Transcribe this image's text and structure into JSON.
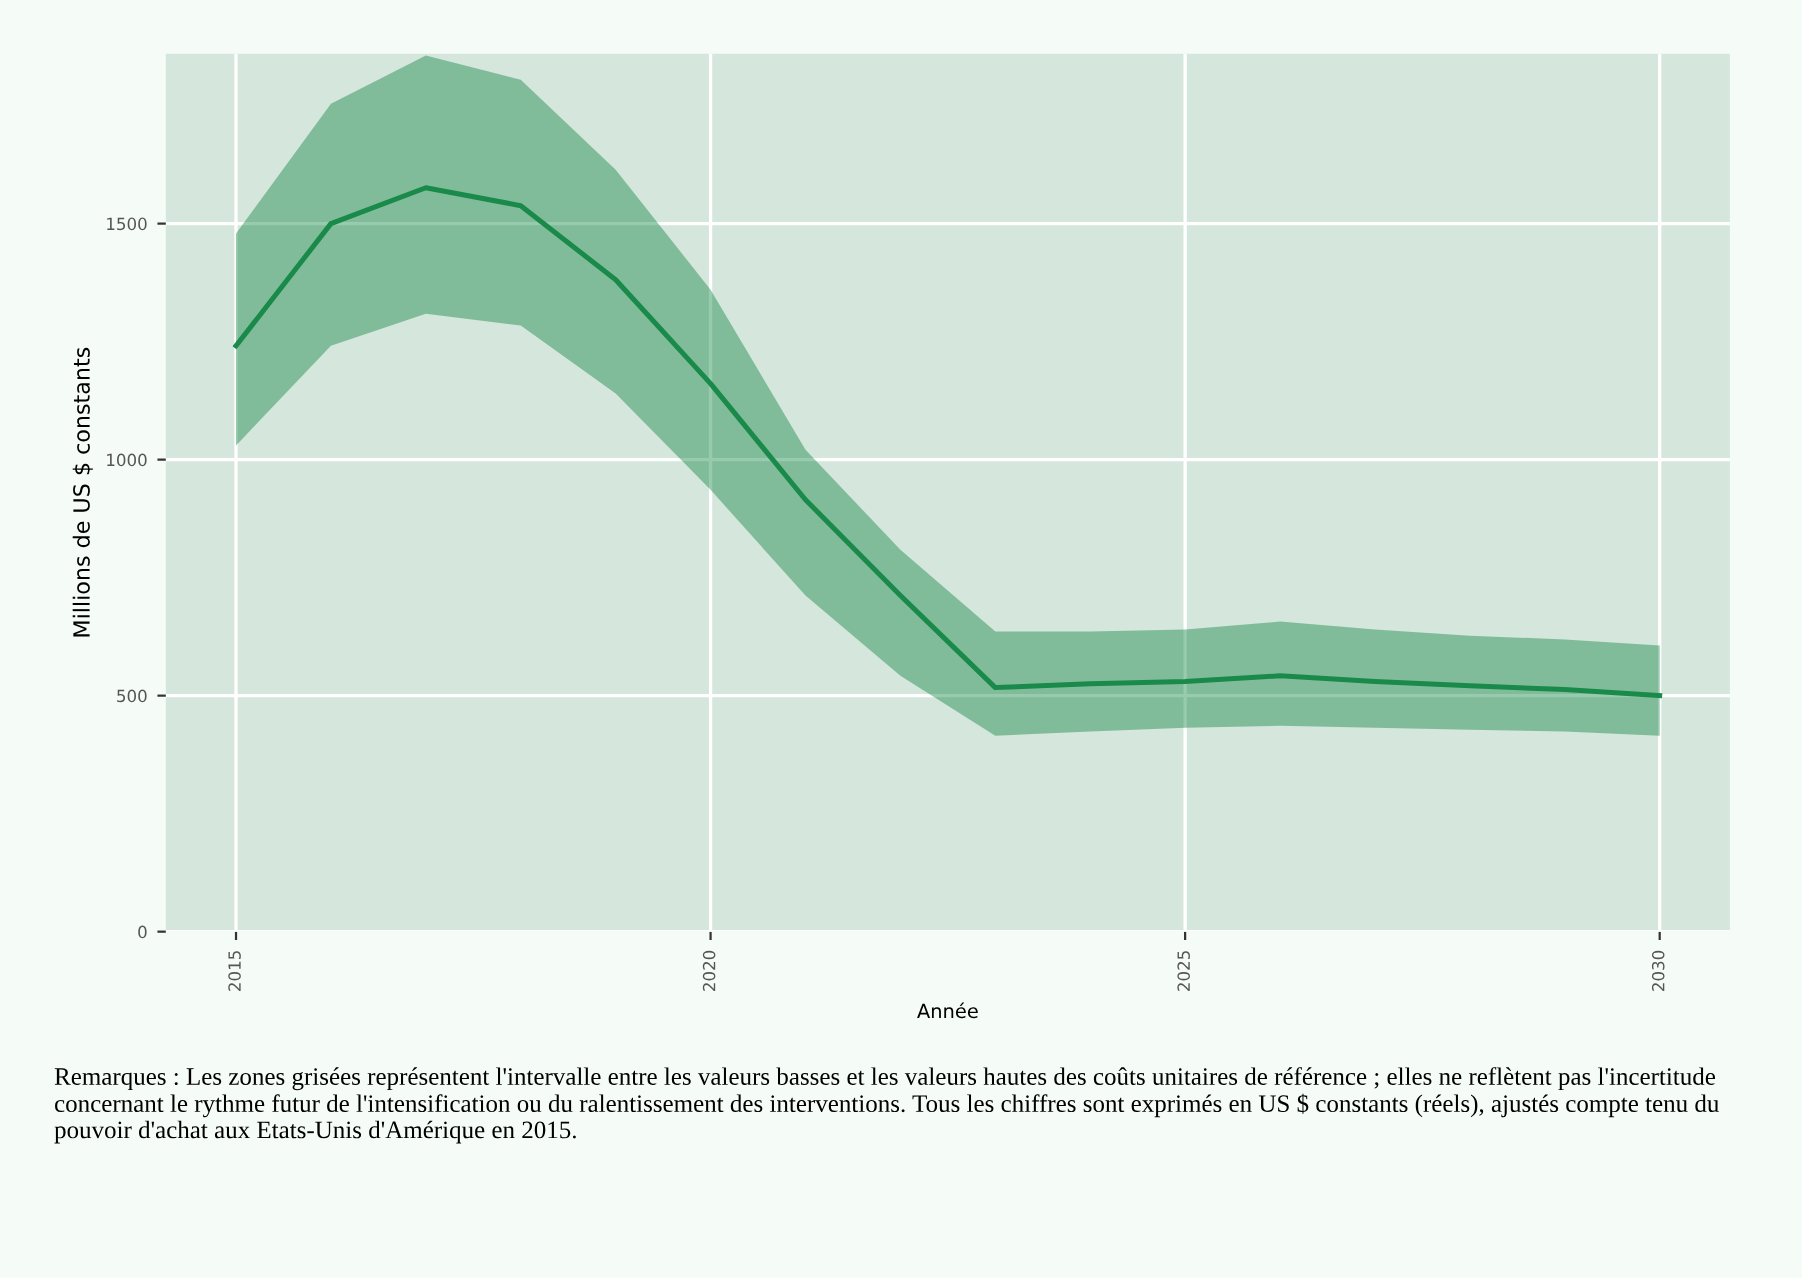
{
  "chart_data": {
    "type": "line",
    "xlabel": "Année",
    "ylabel": "Millions de US $ constants",
    "x": [
      2015,
      2016,
      2017,
      2018,
      2019,
      2020,
      2021,
      2022,
      2023,
      2024,
      2025,
      2026,
      2027,
      2028,
      2029,
      2030
    ],
    "series": [
      {
        "color": "#1a8a4a",
        "values": [
          1241,
          1500,
          1576,
          1538,
          1381,
          1161,
          915,
          712,
          517,
          525,
          530,
          542,
          530,
          521,
          513,
          500
        ],
        "lower": [
          1030,
          1241,
          1309,
          1284,
          1140,
          936,
          712,
          542,
          415,
          424,
          432,
          436,
          432,
          428,
          424,
          415
        ],
        "upper": [
          1479,
          1754,
          1856,
          1805,
          1614,
          1360,
          1021,
          809,
          636,
          636,
          640,
          657,
          640,
          627,
          619,
          606
        ]
      }
    ],
    "xlim": [
      2014.26,
      2030.74
    ],
    "ylim": [
      0,
      1860
    ],
    "xticks": [
      2015,
      2020,
      2025,
      2030
    ],
    "yticks": [
      0,
      500,
      1000,
      1500
    ],
    "grid": true,
    "annotations": [
      "Remarques : Les zones grisées représentent l'intervalle entre les valeurs basses et les valeurs hautes des coûts unitaires de référence ; elles ne reflètent pas l'incertitude concernant le rythme futur de l'intensification ou du ralentissement des interventions. Tous les chiffres sont exprimés en US $ constants (réels), ajustés compte tenu du pouvoir d'achat aux Etats-Unis d'Amérique en 2015."
    ]
  }
}
